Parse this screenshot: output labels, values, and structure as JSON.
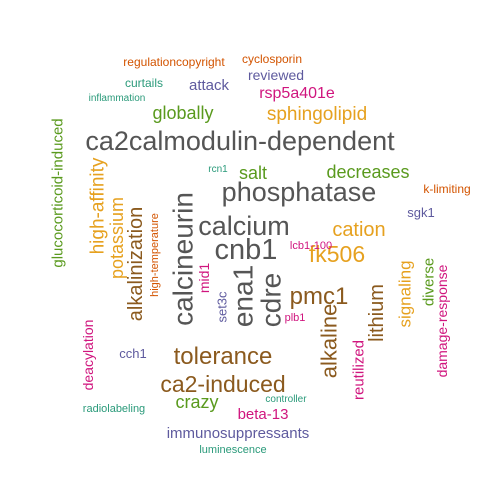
{
  "words": [
    {
      "text": "ca2calmodulin-dependent",
      "color": "#555555",
      "rotate": false
    },
    {
      "text": "phosphatase",
      "color": "#555555",
      "rotate": false
    },
    {
      "text": "calcium",
      "color": "#555555",
      "rotate": false
    },
    {
      "text": "cnb1",
      "color": "#555555",
      "rotate": false
    },
    {
      "text": "calcineurin",
      "color": "#555555",
      "rotate": true
    },
    {
      "text": "ena1",
      "color": "#555555",
      "rotate": true
    },
    {
      "text": "cdre",
      "color": "#555555",
      "rotate": true
    },
    {
      "text": "sphingolipid",
      "color": "#e6a11f",
      "rotate": false
    },
    {
      "text": "cation",
      "color": "#e6a11f",
      "rotate": false
    },
    {
      "text": "fk506",
      "color": "#e6a11f",
      "rotate": false
    },
    {
      "text": "high-affinity",
      "color": "#e6a11f",
      "rotate": true
    },
    {
      "text": "potassium",
      "color": "#e6a11f",
      "rotate": true
    },
    {
      "text": "signaling",
      "color": "#e6a11f",
      "rotate": true
    },
    {
      "text": "tolerance",
      "color": "#8b5a1e",
      "rotate": false
    },
    {
      "text": "ca2-induced",
      "color": "#8b5a1e",
      "rotate": false
    },
    {
      "text": "pmc1",
      "color": "#8b5a1e",
      "rotate": false
    },
    {
      "text": "alkalinization",
      "color": "#8b5a1e",
      "rotate": true
    },
    {
      "text": "alkaline",
      "color": "#8b5a1e",
      "rotate": true
    },
    {
      "text": "lithium",
      "color": "#8b5a1e",
      "rotate": true
    },
    {
      "text": "globally",
      "color": "#5a9a1e",
      "rotate": false
    },
    {
      "text": "salt",
      "color": "#5a9a1e",
      "rotate": false
    },
    {
      "text": "decreases",
      "color": "#5a9a1e",
      "rotate": false
    },
    {
      "text": "crazy",
      "color": "#5a9a1e",
      "rotate": false
    },
    {
      "text": "glucocorticoid-induced",
      "color": "#5a9a1e",
      "rotate": true
    },
    {
      "text": "diverse",
      "color": "#5a9a1e",
      "rotate": true
    },
    {
      "text": "rsp5a401e",
      "color": "#d0157e",
      "rotate": false
    },
    {
      "text": "beta-13",
      "color": "#d0157e",
      "rotate": false
    },
    {
      "text": "mid1",
      "color": "#d0157e",
      "rotate": true
    },
    {
      "text": "deacylation",
      "color": "#d0157e",
      "rotate": true
    },
    {
      "text": "reutilized",
      "color": "#d0157e",
      "rotate": true
    },
    {
      "text": "damage-response",
      "color": "#d0157e",
      "rotate": true
    },
    {
      "text": "lcb1-100",
      "color": "#d0157e",
      "rotate": false
    },
    {
      "text": "plb1",
      "color": "#d0157e",
      "rotate": false
    },
    {
      "text": "attack",
      "color": "#5e5a9e",
      "rotate": false
    },
    {
      "text": "reviewed",
      "color": "#5e5a9e",
      "rotate": false
    },
    {
      "text": "immunosuppressants",
      "color": "#5e5a9e",
      "rotate": false
    },
    {
      "text": "cch1",
      "color": "#5e5a9e",
      "rotate": false
    },
    {
      "text": "sgk1",
      "color": "#5e5a9e",
      "rotate": false
    },
    {
      "text": "set3c",
      "color": "#5e5a9e",
      "rotate": true
    },
    {
      "text": "regulationcopyright",
      "color": "#d35400",
      "rotate": false
    },
    {
      "text": "cyclosporin",
      "color": "#d35400",
      "rotate": false
    },
    {
      "text": "k-limiting",
      "color": "#d35400",
      "rotate": false
    },
    {
      "text": "high-temperature",
      "color": "#d35400",
      "rotate": true
    },
    {
      "text": "curtails",
      "color": "#2a9a7a",
      "rotate": false
    },
    {
      "text": "inflammation",
      "color": "#2a9a7a",
      "rotate": false
    },
    {
      "text": "rcn1",
      "color": "#2a9a7a",
      "rotate": false
    },
    {
      "text": "radiolabeling",
      "color": "#2a9a7a",
      "rotate": false
    },
    {
      "text": "controller",
      "color": "#2a9a7a",
      "rotate": false
    },
    {
      "text": "luminescence",
      "color": "#2a9a7a",
      "rotate": false
    }
  ]
}
